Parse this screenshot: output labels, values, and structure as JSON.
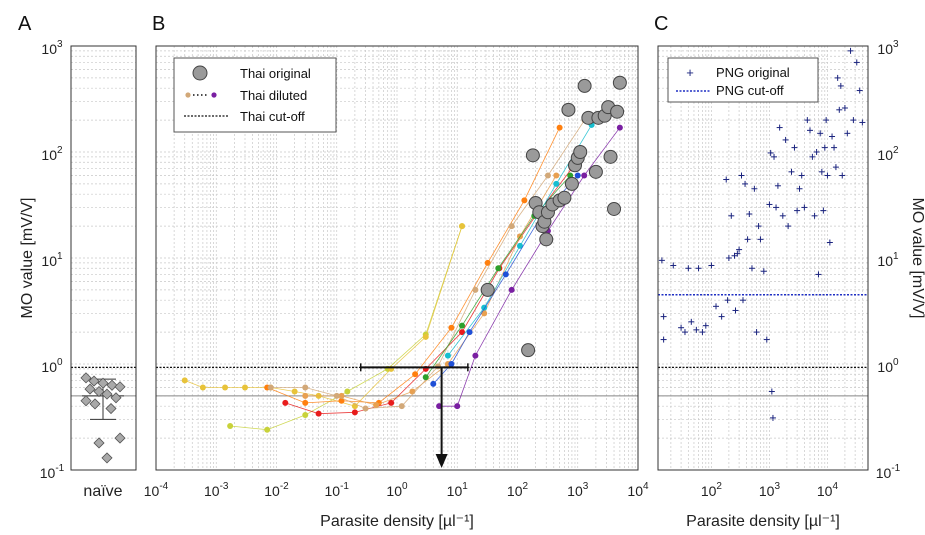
{
  "panels": {
    "a": "A",
    "b": "B",
    "c": "C"
  },
  "axes": {
    "ylabel_left": "MO value [mV/V]",
    "ylabel_right": "MO value [mV/V]",
    "xlabel_b": "Parasite density [µl⁻¹]",
    "xlabel_c": "Parasite density [µl⁻¹]",
    "naive_label": "naïve",
    "y_ticks": [
      {
        "base": "10",
        "exp": "-1"
      },
      {
        "base": "10",
        "exp": "0"
      },
      {
        "base": "10",
        "exp": "1"
      },
      {
        "base": "10",
        "exp": "2"
      },
      {
        "base": "10",
        "exp": "3"
      }
    ],
    "x_ticks_b": [
      {
        "base": "10",
        "exp": "-4"
      },
      {
        "base": "10",
        "exp": "-3"
      },
      {
        "base": "10",
        "exp": "-2"
      },
      {
        "base": "10",
        "exp": "-1"
      },
      {
        "base": "10",
        "exp": "0"
      },
      {
        "base": "10",
        "exp": "1"
      },
      {
        "base": "10",
        "exp": "2"
      },
      {
        "base": "10",
        "exp": "3"
      },
      {
        "base": "10",
        "exp": "4"
      }
    ],
    "x_ticks_c": [
      {
        "base": "10",
        "exp": "2"
      },
      {
        "base": "10",
        "exp": "3"
      },
      {
        "base": "10",
        "exp": "4"
      }
    ]
  },
  "legend_b": {
    "original": "Thai original",
    "diluted": "Thai diluted",
    "cutoff": "Thai cut-off"
  },
  "legend_c": {
    "original": "PNG original",
    "cutoff": "PNG cut-off"
  },
  "colors": {
    "thai_original": "#9a9a9a",
    "png_original": "#1a237e",
    "thai_cutoff": "#111111",
    "png_cutoff": "#1f2fc4",
    "naive_marker": "#a9a9a9",
    "dilution_series": [
      "#c8d23a",
      "#e8c33a",
      "#ff7f0e",
      "#e81c1c",
      "#e8a050",
      "#d2a878",
      "#2ca02c",
      "#17becf",
      "#1f4fd6",
      "#7a1fa2"
    ]
  },
  "chart_data": [
    {
      "panel": "A",
      "type": "scatter",
      "xlabel": "",
      "ylabel": "MO value [mV/V]",
      "y_scale": "log",
      "ylim": [
        0.1,
        1000
      ],
      "categories": [
        "naïve"
      ],
      "values": [
        0.74,
        0.69,
        0.66,
        0.63,
        0.61,
        0.58,
        0.55,
        0.52,
        0.48,
        0.45,
        0.42,
        0.38,
        0.2,
        0.18,
        0.13
      ],
      "summary": {
        "mean": 0.5,
        "upper": 0.72,
        "lower": 0.3
      },
      "grid": true
    },
    {
      "panel": "B",
      "type": "scatter",
      "xlabel": "Parasite density [µl⁻¹]",
      "ylabel": "MO value [mV/V]",
      "x_scale": "log",
      "y_scale": "log",
      "xlim": [
        0.0001,
        10000
      ],
      "ylim": [
        0.1,
        1000
      ],
      "legend": "top-left",
      "grid": true,
      "series": [
        {
          "name": "Thai original",
          "x": [
            32,
            150,
            180,
            200,
            230,
            260,
            280,
            300,
            320,
            380,
            500,
            600,
            700,
            800,
            900,
            1000,
            1100,
            1300,
            1500,
            2000,
            2200,
            2800,
            3200,
            3500,
            4000,
            4500,
            5000
          ],
          "y": [
            5,
            1.35,
            93,
            33,
            27,
            20,
            22,
            15,
            27,
            32,
            35,
            37,
            250,
            50,
            75,
            88,
            100,
            420,
            210,
            65,
            210,
            220,
            265,
            90,
            29,
            240,
            450
          ]
        },
        {
          "name": "Thai diluted",
          "lines": [
            {
              "x": [
                0.0017,
                0.007,
                0.03,
                0.15,
                0.7,
                3,
                12
              ],
              "y": [
                0.26,
                0.24,
                0.33,
                0.55,
                0.9,
                1.9,
                20
              ]
            },
            {
              "x": [
                0.0003,
                0.0006,
                0.0014,
                0.003,
                0.008,
                0.02,
                0.05,
                0.2,
                0.8,
                3,
                12
              ],
              "y": [
                0.7,
                0.6,
                0.6,
                0.6,
                0.6,
                0.55,
                0.5,
                0.4,
                0.9,
                1.8,
                20
              ]
            },
            {
              "x": [
                0.007,
                0.03,
                0.12,
                0.5,
                2,
                8,
                32,
                130,
                500
              ],
              "y": [
                0.6,
                0.43,
                0.45,
                0.43,
                0.8,
                2.2,
                9,
                35,
                170
              ]
            },
            {
              "x": [
                0.014,
                0.05,
                0.2,
                0.8,
                3,
                12,
                50,
                200,
                800
              ],
              "y": [
                0.43,
                0.34,
                0.35,
                0.43,
                0.9,
                2,
                8,
                25,
                70
              ]
            },
            {
              "x": [
                0.03,
                0.12,
                0.45,
                1.8,
                7,
                28,
                110,
                440
              ],
              "y": [
                0.5,
                0.5,
                0.41,
                0.55,
                1,
                3,
                16,
                60
              ]
            },
            {
              "x": [
                0.008,
                0.03,
                0.1,
                0.3,
                1.2,
                4.8,
                20,
                80,
                320,
                1300
              ],
              "y": [
                0.6,
                0.6,
                0.5,
                0.38,
                0.4,
                0.95,
                5,
                20,
                60,
                200
              ]
            },
            {
              "x": [
                3,
                12,
                48,
                190,
                750
              ],
              "y": [
                0.75,
                2.3,
                8,
                25,
                60
              ]
            },
            {
              "x": [
                7,
                28,
                110,
                440,
                1700
              ],
              "y": [
                1.2,
                3.4,
                13,
                50,
                180
              ]
            },
            {
              "x": [
                4,
                8,
                16,
                64,
                250,
                1000
              ],
              "y": [
                0.65,
                1,
                2,
                7,
                25,
                60
              ]
            },
            {
              "x": [
                5,
                10,
                20,
                80,
                320,
                1280,
                5000
              ],
              "y": [
                0.4,
                0.4,
                1.2,
                5,
                18,
                60,
                170
              ]
            }
          ]
        },
        {
          "name": "Thai cut-off",
          "y": 0.93
        }
      ],
      "annotations": [
        {
          "type": "errorbar",
          "x": 5.5,
          "y": 0.93,
          "x_low": 0.25,
          "x_high": 15
        },
        {
          "type": "arrow",
          "x": 5.5,
          "from_y": 0.93,
          "to_y": 0.1
        }
      ],
      "reference_line": {
        "y": 0.5,
        "color": "#888888"
      }
    },
    {
      "panel": "C",
      "type": "scatter",
      "xlabel": "Parasite density [µl⁻¹]",
      "ylabel": "MO value [mV/V]",
      "x_scale": "log",
      "y_scale": "log",
      "xlim": [
        12,
        50000
      ],
      "ylim": [
        0.1,
        1000
      ],
      "legend": "top-left",
      "grid": true,
      "series": [
        {
          "name": "PNG original",
          "x": [
            14,
            15,
            15,
            22,
            30,
            35,
            40,
            45,
            55,
            60,
            70,
            80,
            100,
            120,
            150,
            180,
            190,
            200,
            220,
            250,
            260,
            280,
            300,
            330,
            350,
            380,
            420,
            450,
            500,
            550,
            600,
            650,
            700,
            800,
            900,
            1000,
            1050,
            1100,
            1150,
            1200,
            1300,
            1400,
            1500,
            1700,
            1900,
            2100,
            2400,
            2700,
            3000,
            3300,
            3600,
            4000,
            4500,
            5000,
            5500,
            6000,
            6500,
            7000,
            7500,
            8000,
            8500,
            9000,
            9500,
            10000,
            11000,
            12000,
            13000,
            14000,
            15000,
            16000,
            17000,
            18000,
            20000,
            22000,
            25000,
            28000,
            32000,
            36000,
            40000
          ],
          "y": [
            9.5,
            2.8,
            1.7,
            8.5,
            2.2,
            2,
            8,
            2.5,
            2.1,
            8,
            2,
            2.3,
            8.5,
            3.5,
            2.8,
            55,
            4,
            10,
            25,
            10.5,
            3.2,
            11,
            12,
            60,
            4,
            50,
            15,
            26,
            8,
            45,
            2,
            20,
            15,
            7.5,
            1.7,
            32,
            98,
            0.55,
            0.31,
            90,
            30,
            48,
            170,
            25,
            130,
            20,
            65,
            110,
            28,
            45,
            60,
            30,
            200,
            160,
            90,
            25,
            100,
            7,
            150,
            65,
            28,
            110,
            200,
            60,
            14,
            140,
            110,
            72,
            500,
            250,
            420,
            60,
            260,
            150,
            900,
            200,
            700,
            380,
            190
          ]
        },
        {
          "name": "PNG cut-off",
          "y": 4.5
        }
      ],
      "reference_lines": [
        {
          "y": 0.93,
          "color": "#111111",
          "style": "dotted"
        },
        {
          "y": 0.5,
          "color": "#888888"
        }
      ]
    }
  ]
}
